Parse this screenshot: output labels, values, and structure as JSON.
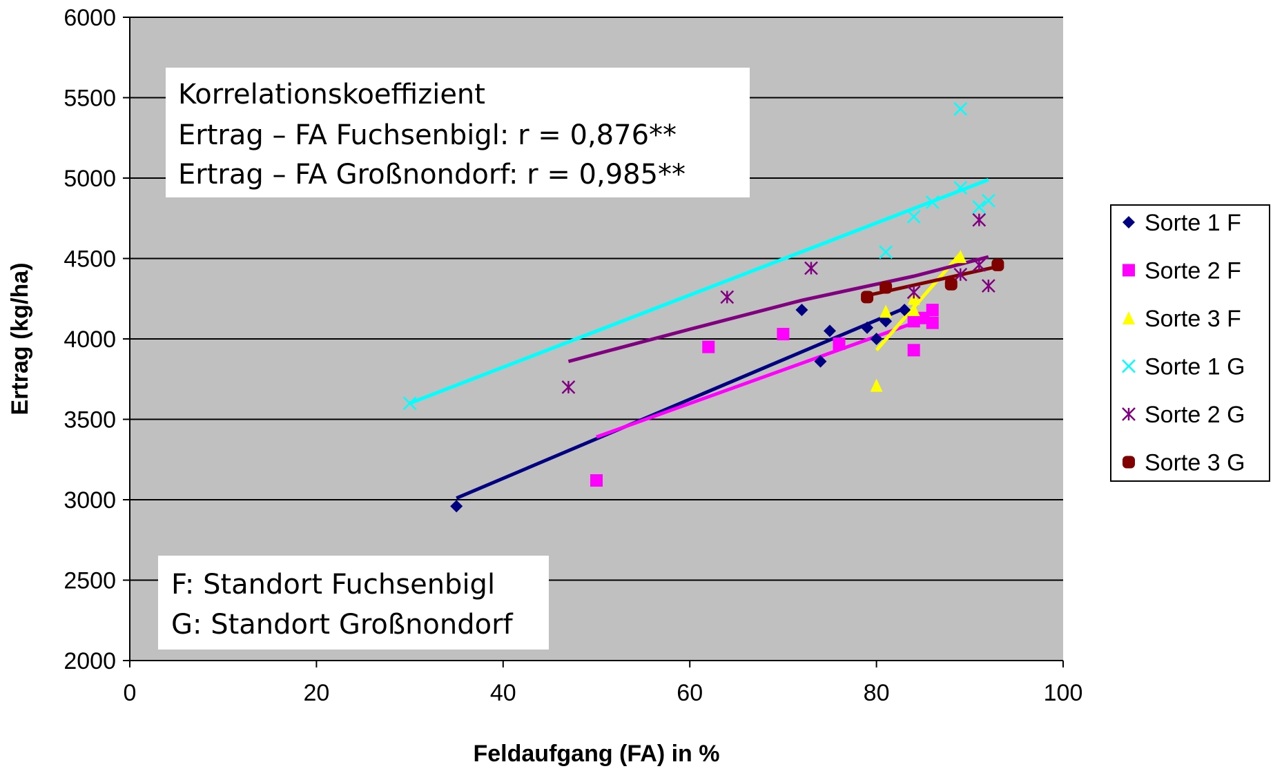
{
  "chart_data": {
    "type": "scatter",
    "xlabel": "Feldaufgang (FA) in %",
    "ylabel": "Ertrag (kg/ha)",
    "xlim": [
      0,
      100
    ],
    "ylim": [
      2000,
      6000
    ],
    "x_ticks": [
      "0",
      "20",
      "40",
      "60",
      "80",
      "100"
    ],
    "y_ticks": [
      "2000",
      "2500",
      "3000",
      "3500",
      "4000",
      "4500",
      "5000",
      "5500",
      "6000"
    ],
    "grid": "horizontal",
    "plot_background": "#c0c0c0",
    "legend_position": "right",
    "series": [
      {
        "name": "Sorte 1 F",
        "marker": "diamond",
        "color": "#000080",
        "points": [
          [
            35,
            2960
          ],
          [
            72,
            4180
          ],
          [
            74,
            3860
          ],
          [
            75,
            4050
          ],
          [
            79,
            4070
          ],
          [
            80,
            4000
          ],
          [
            81,
            4110
          ],
          [
            83,
            4180
          ],
          [
            84,
            4130
          ]
        ],
        "trend": [
          [
            35,
            3010
          ],
          [
            83,
            4190
          ]
        ]
      },
      {
        "name": "Sorte 2 F",
        "marker": "square",
        "color": "#ff00ff",
        "points": [
          [
            50,
            3120
          ],
          [
            62,
            3950
          ],
          [
            70,
            4030
          ],
          [
            76,
            3970
          ],
          [
            84,
            3930
          ],
          [
            84,
            4110
          ],
          [
            85,
            4130
          ],
          [
            86,
            4180
          ],
          [
            86,
            4100
          ]
        ],
        "trend": [
          [
            50,
            3390
          ],
          [
            85,
            4120
          ]
        ]
      },
      {
        "name": "Sorte 3 F",
        "marker": "triangle",
        "color": "#ffff00",
        "points": [
          [
            80,
            3710
          ],
          [
            81,
            4170
          ],
          [
            84,
            4180
          ],
          [
            84,
            4250
          ],
          [
            89,
            4510
          ]
        ],
        "trend": [
          [
            80,
            3930
          ],
          [
            89,
            4530
          ]
        ]
      },
      {
        "name": "Sorte 1 G",
        "marker": "x",
        "color": "#00ffff",
        "points": [
          [
            30,
            3600
          ],
          [
            81,
            4540
          ],
          [
            84,
            4760
          ],
          [
            86,
            4850
          ],
          [
            89,
            5430
          ],
          [
            89,
            4940
          ],
          [
            91,
            4820
          ],
          [
            92,
            4860
          ]
        ],
        "trend": [
          [
            30,
            3600
          ],
          [
            92,
            4990
          ]
        ]
      },
      {
        "name": "Sorte 2 G",
        "marker": "asterisk",
        "color": "#800080",
        "points": [
          [
            47,
            3700
          ],
          [
            64,
            4260
          ],
          [
            73,
            4440
          ],
          [
            84,
            4290
          ],
          [
            89,
            4400
          ],
          [
            91,
            4740
          ],
          [
            91,
            4460
          ],
          [
            92,
            4330
          ]
        ],
        "trend": [
          [
            47,
            3860
          ],
          [
            60,
            4060
          ],
          [
            72,
            4240
          ],
          [
            84,
            4390
          ],
          [
            92,
            4510
          ]
        ]
      },
      {
        "name": "Sorte 3 G",
        "marker": "circle",
        "color": "#800000",
        "points": [
          [
            79,
            4260
          ],
          [
            81,
            4320
          ],
          [
            88,
            4340
          ],
          [
            93,
            4460
          ]
        ],
        "trend": [
          [
            79,
            4270
          ],
          [
            93,
            4450
          ]
        ]
      }
    ],
    "annotations": [
      {
        "lines": [
          "Korrelationskoeffizient",
          "Ertrag – FA Fuchsenbigl: r = 0,876**",
          "Ertrag – FA Großnondorf: r = 0,985**"
        ]
      },
      {
        "lines": [
          "F: Standort Fuchsenbigl",
          "G: Standort Großnondorf"
        ]
      }
    ]
  }
}
